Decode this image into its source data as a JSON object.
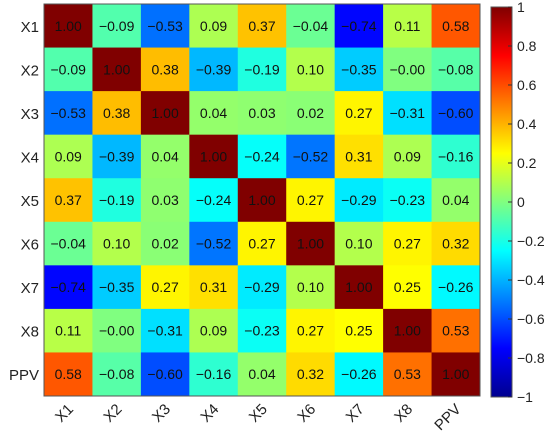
{
  "chart_data": {
    "type": "heatmap",
    "labels": [
      "X1",
      "X2",
      "X3",
      "X4",
      "X5",
      "X6",
      "X7",
      "X8",
      "PPV"
    ],
    "matrix": [
      [
        1.0,
        -0.09,
        -0.53,
        0.09,
        0.37,
        -0.04,
        -0.74,
        0.11,
        0.58
      ],
      [
        -0.09,
        1.0,
        0.38,
        -0.39,
        -0.19,
        0.1,
        -0.35,
        -0.0,
        -0.08
      ],
      [
        -0.53,
        0.38,
        1.0,
        0.04,
        0.03,
        0.02,
        0.27,
        -0.31,
        -0.6
      ],
      [
        0.09,
        -0.39,
        0.04,
        1.0,
        -0.24,
        -0.52,
        0.31,
        0.09,
        -0.16
      ],
      [
        0.37,
        -0.19,
        0.03,
        -0.24,
        1.0,
        0.27,
        -0.29,
        -0.23,
        0.04
      ],
      [
        -0.04,
        0.1,
        0.02,
        -0.52,
        0.27,
        1.0,
        0.1,
        0.27,
        0.32
      ],
      [
        -0.74,
        -0.35,
        0.27,
        0.31,
        -0.29,
        0.1,
        1.0,
        0.25,
        -0.26
      ],
      [
        0.11,
        -0.0,
        -0.31,
        0.09,
        -0.23,
        0.27,
        0.25,
        1.0,
        0.53
      ],
      [
        0.58,
        -0.08,
        -0.6,
        -0.16,
        0.04,
        0.32,
        -0.26,
        0.53,
        1.0
      ]
    ],
    "cell_labels": [
      [
        "1.00",
        "−0.09",
        "−0.53",
        "0.09",
        "0.37",
        "−0.04",
        "−0.74",
        "0.11",
        "0.58"
      ],
      [
        "−0.09",
        "1.00",
        "0.38",
        "−0.39",
        "−0.19",
        "0.10",
        "−0.35",
        "−0.00",
        "−0.08"
      ],
      [
        "−0.53",
        "0.38",
        "1.00",
        "0.04",
        "0.03",
        "0.02",
        "0.27",
        "−0.31",
        "−0.60"
      ],
      [
        "0.09",
        "−0.39",
        "0.04",
        "1.00",
        "−0.24",
        "−0.52",
        "0.31",
        "0.09",
        "−0.16"
      ],
      [
        "0.37",
        "−0.19",
        "0.03",
        "−0.24",
        "1.00",
        "0.27",
        "−0.29",
        "−0.23",
        "0.04"
      ],
      [
        "−0.04",
        "0.10",
        "0.02",
        "−0.52",
        "0.27",
        "1.00",
        "0.10",
        "0.27",
        "0.32"
      ],
      [
        "−0.74",
        "−0.35",
        "0.27",
        "0.31",
        "−0.29",
        "0.10",
        "1.00",
        "0.25",
        "−0.26"
      ],
      [
        "0.11",
        "−0.00",
        "−0.31",
        "0.09",
        "−0.23",
        "0.27",
        "0.25",
        "1.00",
        "0.53"
      ],
      [
        "0.58",
        "−0.08",
        "−0.60",
        "−0.16",
        "0.04",
        "0.32",
        "−0.26",
        "0.53",
        "1.00"
      ]
    ],
    "colorscale": "jet",
    "value_range": [
      -1,
      1
    ],
    "colorbar": {
      "ticks": [
        1,
        0.8,
        0.6,
        0.4,
        0.2,
        0,
        -0.2,
        -0.4,
        -0.6,
        -0.8,
        -1
      ],
      "tick_labels": [
        "1",
        "0.8",
        "0.6",
        "0.4",
        "0.2",
        "0",
        "−0.2",
        "−0.4",
        "−0.6",
        "−0.8",
        "−1"
      ],
      "placement": "right"
    },
    "title": "",
    "xlabel": "",
    "ylabel": ""
  }
}
